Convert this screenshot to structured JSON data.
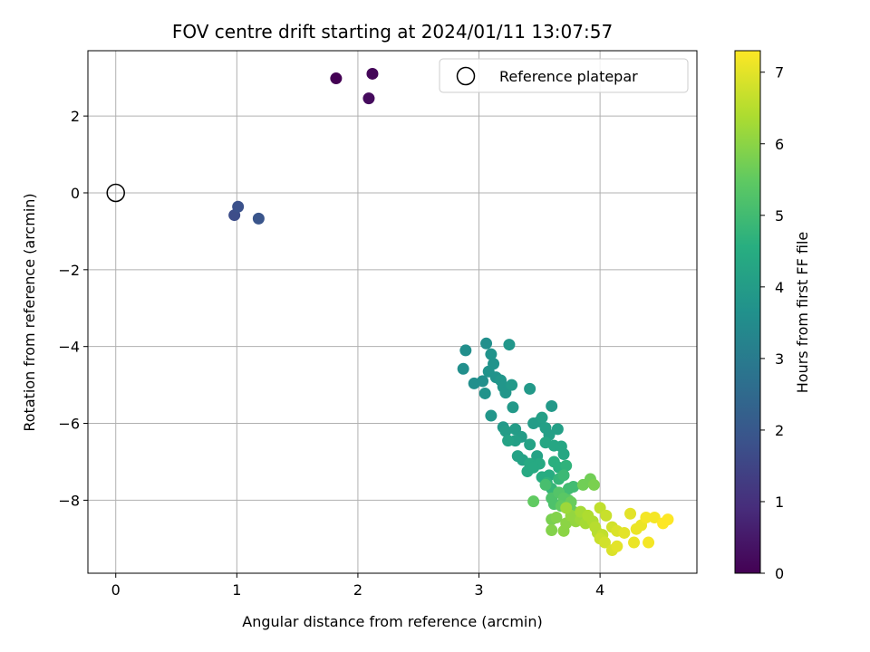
{
  "chart_data": {
    "type": "scatter",
    "title": "FOV centre drift starting at 2024/01/11 13:07:57",
    "xlabel": "Angular distance from reference (arcmin)",
    "ylabel": "Rotation from reference (arcmin)",
    "xlim": [
      -0.23,
      4.8
    ],
    "ylim": [
      -9.9,
      3.7
    ],
    "xticks": [
      0,
      1,
      2,
      3,
      4
    ],
    "yticks": [
      -8,
      -6,
      -4,
      -2,
      0,
      2
    ],
    "xtick_labels": [
      "0",
      "1",
      "2",
      "3",
      "4"
    ],
    "ytick_labels": [
      "−8",
      "−6",
      "−4",
      "−2",
      "0",
      "2"
    ],
    "grid": true,
    "legend": {
      "placement": "top-right",
      "entries": [
        "Reference platepar"
      ]
    },
    "colorbar": {
      "label": "Hours from first FF file",
      "colormap": "viridis",
      "range": [
        0,
        7.3
      ],
      "ticks": [
        0,
        1,
        2,
        3,
        4,
        5,
        6,
        7
      ],
      "tick_labels": [
        "0",
        "1",
        "2",
        "3",
        "4",
        "5",
        "6",
        "7"
      ]
    },
    "reference_point": {
      "name": "Reference platepar",
      "x": 0,
      "y": 0
    },
    "series": [
      {
        "points": [
          [
            1.82,
            2.98,
            0.0
          ],
          [
            2.12,
            3.1,
            0.1
          ],
          [
            2.09,
            2.46,
            0.2
          ],
          [
            0.98,
            -0.58,
            1.7
          ],
          [
            1.01,
            -0.36,
            1.8
          ],
          [
            1.18,
            -0.67,
            1.9
          ],
          [
            2.87,
            -4.58,
            3.6
          ],
          [
            2.89,
            -4.1,
            3.6
          ],
          [
            2.96,
            -4.96,
            3.6
          ],
          [
            3.03,
            -4.9,
            3.6
          ],
          [
            3.06,
            -3.92,
            3.6
          ],
          [
            3.05,
            -5.22,
            3.7
          ],
          [
            3.08,
            -4.65,
            3.7
          ],
          [
            3.1,
            -4.2,
            3.7
          ],
          [
            3.12,
            -4.45,
            3.7
          ],
          [
            3.14,
            -4.8,
            3.7
          ],
          [
            3.1,
            -5.8,
            3.8
          ],
          [
            3.18,
            -4.88,
            3.8
          ],
          [
            3.2,
            -5.05,
            3.8
          ],
          [
            3.22,
            -5.2,
            3.8
          ],
          [
            3.25,
            -3.95,
            3.8
          ],
          [
            3.27,
            -5.0,
            3.9
          ],
          [
            3.28,
            -5.58,
            3.9
          ],
          [
            3.2,
            -6.1,
            3.9
          ],
          [
            3.42,
            -5.1,
            3.9
          ],
          [
            3.6,
            -5.55,
            3.9
          ],
          [
            3.22,
            -6.2,
            4.0
          ],
          [
            3.3,
            -6.15,
            4.0
          ],
          [
            3.35,
            -6.35,
            4.0
          ],
          [
            3.45,
            -6.0,
            4.0
          ],
          [
            3.5,
            -5.95,
            4.0
          ],
          [
            3.52,
            -5.85,
            4.1
          ],
          [
            3.55,
            -6.12,
            4.1
          ],
          [
            3.58,
            -6.3,
            4.1
          ],
          [
            3.65,
            -6.15,
            4.1
          ],
          [
            3.3,
            -6.45,
            4.1
          ],
          [
            3.24,
            -6.45,
            4.2
          ],
          [
            3.32,
            -6.85,
            4.2
          ],
          [
            3.36,
            -6.95,
            4.2
          ],
          [
            3.42,
            -6.55,
            4.2
          ],
          [
            3.48,
            -6.85,
            4.2
          ],
          [
            3.55,
            -6.5,
            4.3
          ],
          [
            3.62,
            -6.58,
            4.3
          ],
          [
            3.68,
            -6.6,
            4.3
          ],
          [
            3.7,
            -6.8,
            4.3
          ],
          [
            3.5,
            -7.05,
            4.4
          ],
          [
            3.42,
            -7.05,
            4.4
          ],
          [
            3.4,
            -7.25,
            4.4
          ],
          [
            3.45,
            -7.15,
            4.4
          ],
          [
            3.52,
            -7.4,
            4.5
          ],
          [
            3.58,
            -7.35,
            4.5
          ],
          [
            3.62,
            -7.0,
            4.6
          ],
          [
            3.66,
            -7.15,
            4.6
          ],
          [
            3.72,
            -7.1,
            4.7
          ],
          [
            3.56,
            -7.55,
            4.7
          ],
          [
            3.6,
            -7.7,
            4.8
          ],
          [
            3.66,
            -7.45,
            4.8
          ],
          [
            3.7,
            -7.35,
            4.9
          ],
          [
            3.74,
            -7.7,
            5.0
          ],
          [
            3.78,
            -7.65,
            5.0
          ],
          [
            3.55,
            -7.6,
            5.1
          ],
          [
            3.6,
            -7.95,
            5.2
          ],
          [
            3.62,
            -8.1,
            5.2
          ],
          [
            3.66,
            -7.8,
            5.3
          ],
          [
            3.7,
            -7.95,
            5.4
          ],
          [
            3.74,
            -8.0,
            5.4
          ],
          [
            3.45,
            -8.03,
            5.5
          ],
          [
            3.68,
            -8.15,
            5.5
          ],
          [
            3.76,
            -8.05,
            5.6
          ],
          [
            3.78,
            -8.3,
            5.6
          ],
          [
            3.86,
            -7.6,
            5.7
          ],
          [
            3.92,
            -7.45,
            5.7
          ],
          [
            3.95,
            -7.6,
            5.8
          ],
          [
            3.6,
            -8.5,
            5.8
          ],
          [
            3.64,
            -8.45,
            5.9
          ],
          [
            3.6,
            -8.78,
            5.9
          ],
          [
            3.7,
            -8.8,
            6.0
          ],
          [
            3.72,
            -8.6,
            6.0
          ],
          [
            3.76,
            -8.4,
            6.1
          ],
          [
            3.8,
            -8.55,
            6.1
          ],
          [
            3.72,
            -8.2,
            6.2
          ],
          [
            3.84,
            -8.5,
            6.2
          ],
          [
            3.88,
            -8.6,
            6.3
          ],
          [
            3.84,
            -8.3,
            6.3
          ],
          [
            3.9,
            -8.4,
            6.4
          ],
          [
            3.94,
            -8.55,
            6.4
          ],
          [
            3.96,
            -8.7,
            6.5
          ],
          [
            3.98,
            -8.85,
            6.5
          ],
          [
            4.0,
            -8.2,
            6.6
          ],
          [
            4.02,
            -8.9,
            6.6
          ],
          [
            4.05,
            -8.4,
            6.7
          ],
          [
            4.0,
            -9.0,
            6.7
          ],
          [
            4.04,
            -9.1,
            6.8
          ],
          [
            4.1,
            -8.7,
            6.8
          ],
          [
            4.14,
            -8.8,
            6.9
          ],
          [
            4.1,
            -9.3,
            6.9
          ],
          [
            4.14,
            -9.2,
            7.0
          ],
          [
            4.2,
            -8.85,
            7.0
          ],
          [
            4.25,
            -8.35,
            7.0
          ],
          [
            4.3,
            -8.75,
            7.1
          ],
          [
            4.28,
            -9.1,
            7.1
          ],
          [
            4.34,
            -8.65,
            7.1
          ],
          [
            4.38,
            -8.45,
            7.2
          ],
          [
            4.4,
            -9.1,
            7.2
          ],
          [
            4.45,
            -8.45,
            7.2
          ],
          [
            4.52,
            -8.6,
            7.3
          ],
          [
            4.56,
            -8.5,
            7.3
          ]
        ]
      }
    ]
  }
}
